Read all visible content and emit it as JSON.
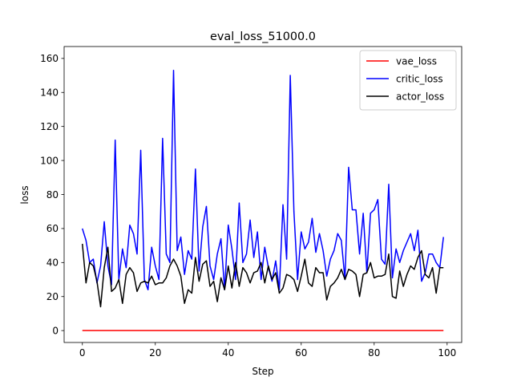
{
  "chart_data": {
    "type": "line",
    "title": "eval_loss_51000.0",
    "xlabel": "Step",
    "ylabel": "loss",
    "xlim": [
      -5,
      104
    ],
    "ylim": [
      -7,
      167
    ],
    "xticks": [
      0,
      20,
      40,
      60,
      80,
      100
    ],
    "yticks": [
      0,
      20,
      40,
      60,
      80,
      100,
      120,
      140,
      160
    ],
    "grid": false,
    "legend_position": "top-right",
    "series": [
      {
        "name": "vae_loss",
        "color": "#ff0000",
        "values": [
          0,
          0,
          0,
          0,
          0,
          0,
          0,
          0,
          0,
          0,
          0,
          0,
          0,
          0,
          0,
          0,
          0,
          0,
          0,
          0,
          0,
          0,
          0,
          0,
          0,
          0,
          0,
          0,
          0,
          0,
          0,
          0,
          0,
          0,
          0,
          0,
          0,
          0,
          0,
          0,
          0,
          0,
          0,
          0,
          0,
          0,
          0,
          0,
          0,
          0,
          0,
          0,
          0,
          0,
          0,
          0,
          0,
          0,
          0,
          0,
          0,
          0,
          0,
          0,
          0,
          0,
          0,
          0,
          0,
          0,
          0,
          0,
          0,
          0,
          0,
          0,
          0,
          0,
          0,
          0,
          0,
          0,
          0,
          0,
          0,
          0,
          0,
          0,
          0,
          0,
          0,
          0,
          0,
          0,
          0,
          0,
          0,
          0,
          0,
          0
        ]
      },
      {
        "name": "critic_loss",
        "color": "#0000ff",
        "values": [
          60,
          53,
          40,
          42,
          28,
          38,
          64,
          38,
          27,
          112,
          30,
          48,
          37,
          62,
          57,
          45,
          106,
          30,
          24,
          49,
          38,
          30,
          113,
          45,
          40,
          153,
          47,
          55,
          33,
          47,
          42,
          95,
          35,
          61,
          73,
          38,
          30,
          45,
          54,
          24,
          62,
          48,
          30,
          75,
          40,
          45,
          65,
          43,
          58,
          30,
          49,
          37,
          29,
          41,
          24,
          74,
          42,
          150,
          70,
          30,
          58,
          48,
          52,
          66,
          46,
          57,
          47,
          32,
          42,
          47,
          57,
          53,
          30,
          96,
          71,
          71,
          45,
          69,
          34,
          69,
          71,
          77,
          42,
          39,
          86,
          31,
          48,
          40,
          47,
          52,
          57,
          47,
          59,
          29,
          34,
          45,
          45,
          40,
          37,
          55
        ]
      },
      {
        "name": "actor_loss",
        "color": "#000000",
        "values": [
          51,
          28,
          40,
          38,
          29,
          14,
          37,
          49,
          23,
          25,
          30,
          16,
          33,
          37,
          34,
          23,
          28,
          29,
          28,
          32,
          27,
          28,
          28,
          31,
          38,
          42,
          38,
          32,
          16,
          24,
          22,
          43,
          29,
          39,
          41,
          26,
          29,
          17,
          31,
          24,
          38,
          25,
          40,
          26,
          37,
          34,
          28,
          34,
          35,
          40,
          28,
          38,
          30,
          34,
          22,
          25,
          33,
          32,
          30,
          23,
          32,
          42,
          28,
          26,
          37,
          34,
          34,
          18,
          26,
          28,
          31,
          36,
          30,
          36,
          35,
          33,
          20,
          33,
          34,
          40,
          31,
          32,
          32,
          33,
          45,
          20,
          19,
          35,
          26,
          33,
          38,
          36,
          43,
          47,
          33,
          31,
          37,
          22,
          37,
          37
        ]
      }
    ]
  }
}
